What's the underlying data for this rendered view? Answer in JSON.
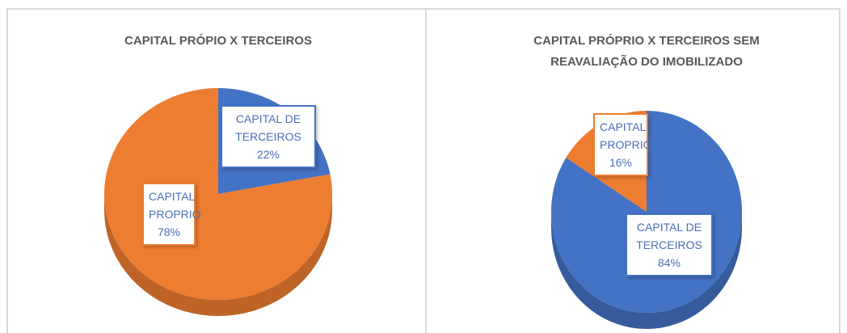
{
  "chart_data": [
    {
      "type": "pie",
      "title": "CAPITAL PRÓPIO X TERCEIROS",
      "categories": [
        "CAPITAL DE TERCEIROS",
        "CAPITAL PROPRIO"
      ],
      "values": [
        22,
        78
      ],
      "value_labels": [
        "22%",
        "78%"
      ],
      "colors": [
        "#4472c4",
        "#ed7d31"
      ]
    },
    {
      "type": "pie",
      "title": "CAPITAL PRÓPRIO X TERCEIROS SEM REAVALIAÇÃO DO IMOBILIZADO",
      "categories": [
        "CAPITAL DE TERCEIROS",
        "CAPITAL PROPRIO"
      ],
      "values": [
        84,
        16
      ],
      "value_labels": [
        "84%",
        "16%"
      ],
      "colors": [
        "#4472c4",
        "#ed7d31"
      ]
    }
  ]
}
